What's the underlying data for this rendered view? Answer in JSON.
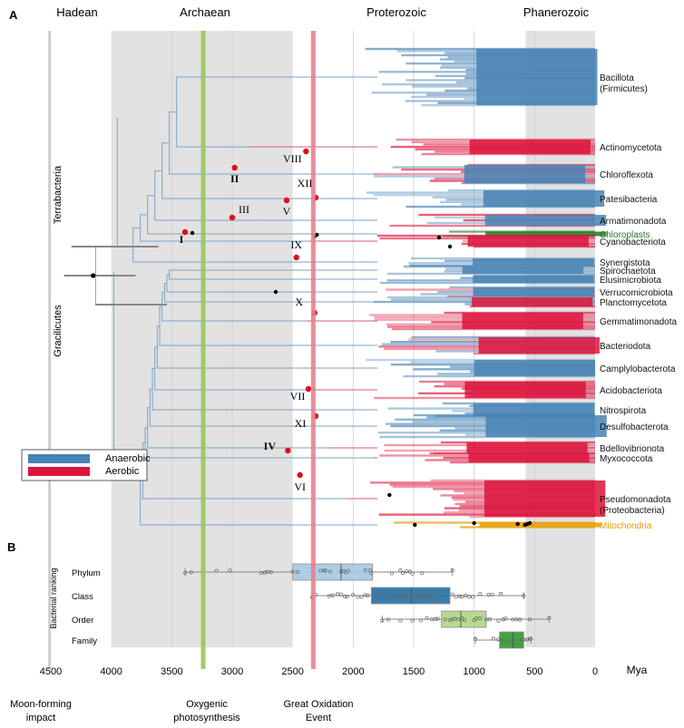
{
  "chart_data": [
    {
      "panel": "A",
      "type": "tree",
      "title": "Bacterial time tree with oxygen metabolism",
      "x_unit": "Mya",
      "xlim": [
        4500,
        0
      ],
      "eons": [
        {
          "name": "Hadean",
          "start": 4500,
          "end": 4000
        },
        {
          "name": "Archaean",
          "start": 4000,
          "end": 2500
        },
        {
          "name": "Proterozoic",
          "start": 2500,
          "end": 539
        },
        {
          "name": "Phanerozoic",
          "start": 539,
          "end": 0
        }
      ],
      "events": [
        {
          "name": "Moon-forming impact",
          "time": 4510,
          "color": "#c8c8c8"
        },
        {
          "name": "Oxygenic photosynthesis",
          "time": 3240,
          "color": "#9ac65a"
        },
        {
          "name": "Great Oxidation Event",
          "time": 2330,
          "color": "#e9808f"
        }
      ],
      "legend": {
        "position": "left",
        "items": [
          {
            "label": "Anaerobic",
            "color": "#4682b4"
          },
          {
            "label": "Aerobic",
            "color": "#dc143c"
          }
        ]
      },
      "supergroups": [
        "Terrabacteria",
        "Gracilicutes"
      ],
      "root_node": {
        "time": 4150,
        "ci": [
          4400,
          3900
        ]
      },
      "clades": [
        {
          "name": "Bacillota",
          "sub": "(Firmicutes)",
          "state": "anaerobic"
        },
        {
          "name": "Actinomycetota",
          "state": "aerobic"
        },
        {
          "name": "Chloroflexota",
          "state": "mixed"
        },
        {
          "name": "Patesibacteria",
          "state": "anaerobic"
        },
        {
          "name": "Armatimonadota",
          "state": "mixed"
        },
        {
          "name": "Chloroplasts",
          "state": "organelle",
          "color": "#1e7a1e"
        },
        {
          "name": "Cyanobacteriota",
          "state": "aerobic"
        },
        {
          "name": "Synergistota",
          "state": "anaerobic"
        },
        {
          "name": "Spirochaetota",
          "state": "anaerobic"
        },
        {
          "name": "Elusimicrobiota",
          "state": "anaerobic"
        },
        {
          "name": "Verrucomicrobiota",
          "state": "mixed"
        },
        {
          "name": "Planctomycetota",
          "state": "mixed"
        },
        {
          "name": "Gemmatimonadota",
          "state": "aerobic"
        },
        {
          "name": "Bacteriodota",
          "state": "mixed"
        },
        {
          "name": "Camplylobacterota",
          "state": "anaerobic"
        },
        {
          "name": "Acidobacteriota",
          "state": "aerobic"
        },
        {
          "name": "Nitrospirota",
          "state": "anaerobic"
        },
        {
          "name": "Desulfobacterota",
          "state": "anaerobic"
        },
        {
          "name": "Bdellovibrionota",
          "state": "aerobic"
        },
        {
          "name": "Myxococcota",
          "state": "aerobic"
        },
        {
          "name": "Pseudomonadota",
          "sub": "(Proteobacteria)",
          "state": "aerobic"
        },
        {
          "name": "Mitochondria",
          "state": "organelle",
          "color": "#e69a00"
        }
      ],
      "aerobic_transitions": [
        {
          "label": "I",
          "time": 3390
        },
        {
          "label": "II",
          "time": 2980
        },
        {
          "label": "III",
          "time": 3000
        },
        {
          "label": "IV",
          "time": 2540
        },
        {
          "label": "V",
          "time": 2550
        },
        {
          "label": "VI",
          "time": 2440
        },
        {
          "label": "VII",
          "time": 2370
        },
        {
          "label": "VIII",
          "time": 2390
        },
        {
          "label": "IX",
          "time": 2470
        },
        {
          "label": "X",
          "time": 2320
        },
        {
          "label": "XI",
          "time": 2310
        },
        {
          "label": "XII",
          "time": 2310
        }
      ],
      "calibration_points_mya": [
        3330,
        2640,
        2320,
        2300,
        1700,
        1490,
        1290,
        1200,
        1000,
        640,
        580,
        560,
        540
      ]
    },
    {
      "panel": "B",
      "type": "box",
      "ylabel": "Bacterial ranking",
      "xlabel": "Mya",
      "xlim": [
        4500,
        0
      ],
      "x_ticks": [
        4500,
        4000,
        3500,
        3000,
        2500,
        2000,
        1500,
        1000,
        500,
        0
      ],
      "categories": [
        "Phylum",
        "Class",
        "Order",
        "Family"
      ],
      "series": [
        {
          "name": "Phylum",
          "whisker_low": 3390,
          "q1": 2500,
          "median": 2100,
          "q3": 1840,
          "whisker_high": 1180,
          "color": "#a9cce3",
          "points": [
            3390,
            3340,
            3240,
            3130,
            3020,
            2760,
            2730,
            2710,
            2680,
            2500,
            2460,
            2270,
            2240,
            2230,
            2190,
            2100,
            2080,
            2060,
            2040,
            1900,
            1860,
            1850,
            1680,
            1610,
            1590,
            1560,
            1530,
            1510,
            1430,
            1180
          ]
        },
        {
          "name": "Class",
          "whisker_low": 2340,
          "q1": 1850,
          "median": 1520,
          "q3": 1200,
          "whisker_high": 590,
          "color": "#2f77a9",
          "points": [
            2340,
            2310,
            2200,
            2170,
            2130,
            2100,
            2070,
            2050,
            2000,
            1960,
            1930,
            1900,
            1880,
            1800,
            1750,
            1720,
            1680,
            1630,
            1600,
            1580,
            1560,
            1530,
            1500,
            1470,
            1440,
            1420,
            1390,
            1370,
            1320,
            1180,
            1150,
            1120,
            1100,
            1070,
            1040,
            1010,
            950,
            880,
            850,
            780,
            590
          ]
        },
        {
          "name": "Order",
          "whisker_low": 1760,
          "q1": 1270,
          "median": 1110,
          "q3": 900,
          "whisker_high": 380,
          "color": "#b2d98a",
          "points": [
            1760,
            1710,
            1610,
            1510,
            1440,
            1390,
            1350,
            1320,
            1300,
            1240,
            1200,
            1180,
            1160,
            1130,
            1100,
            1080,
            1000,
            980,
            950,
            900,
            870,
            800,
            760,
            740,
            680,
            650,
            620,
            540,
            380
          ]
        },
        {
          "name": "Family",
          "whisker_low": 990,
          "q1": 790,
          "median": 680,
          "q3": 590,
          "whisker_high": 530,
          "color": "#3a9d3a",
          "points": [
            990,
            840,
            800,
            770,
            730,
            680,
            610,
            590,
            560,
            540,
            530
          ]
        }
      ]
    }
  ],
  "panel_labels": {
    "a": "A",
    "b": "B"
  },
  "x_unit_label": "Mya",
  "event_labels": [
    {
      "line1": "Moon-forming",
      "line2": "impact"
    },
    {
      "line1": "Oxygenic",
      "line2": "photosynthesis"
    },
    {
      "line1": "Great Oxidation",
      "line2": "Event"
    }
  ]
}
